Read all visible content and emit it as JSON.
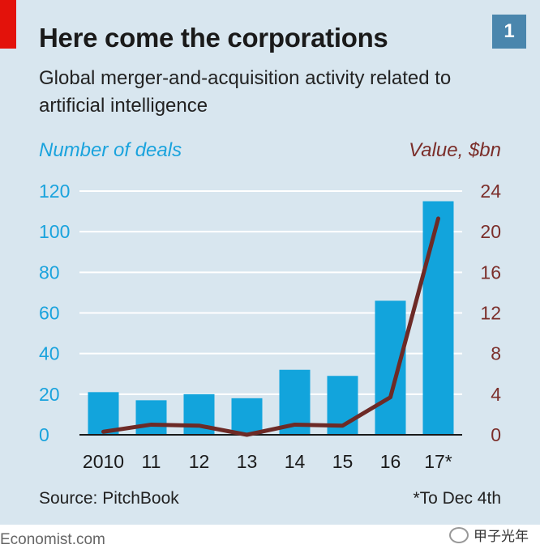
{
  "header": {
    "title": "Here come the corporations",
    "subtitle": "Global merger-and-acquisition activity related to artificial intelligence",
    "badge": "1"
  },
  "footer": {
    "source": "Source: PitchBook",
    "footnote": "*To Dec 4th",
    "brand": "Economist.com",
    "watermark": "甲子光年"
  },
  "colors": {
    "bar": "#12a4dc",
    "line": "#6d2a26",
    "left_axis": "#1aa3dd",
    "right_axis": "#7b2e2a",
    "grid": "#ffffff"
  },
  "chart_data": {
    "type": "bar",
    "categories": [
      "2010",
      "11",
      "12",
      "13",
      "14",
      "15",
      "16",
      "17*"
    ],
    "series": [
      {
        "name": "Number of deals",
        "kind": "bar",
        "axis": "left",
        "values": [
          21,
          17,
          20,
          18,
          32,
          29,
          66,
          115
        ]
      },
      {
        "name": "Value, $bn",
        "kind": "line",
        "axis": "right",
        "values": [
          0.3,
          1.0,
          0.9,
          0.0,
          1.0,
          0.9,
          3.7,
          21.3
        ]
      }
    ],
    "left_axis": {
      "label": "Number of deals",
      "range": [
        0,
        120
      ],
      "ticks": [
        0,
        20,
        40,
        60,
        80,
        100,
        120
      ]
    },
    "right_axis": {
      "label": "Value, $bn",
      "range": [
        0,
        24
      ],
      "ticks": [
        0,
        4,
        8,
        12,
        16,
        20,
        24
      ]
    },
    "grid": true
  }
}
